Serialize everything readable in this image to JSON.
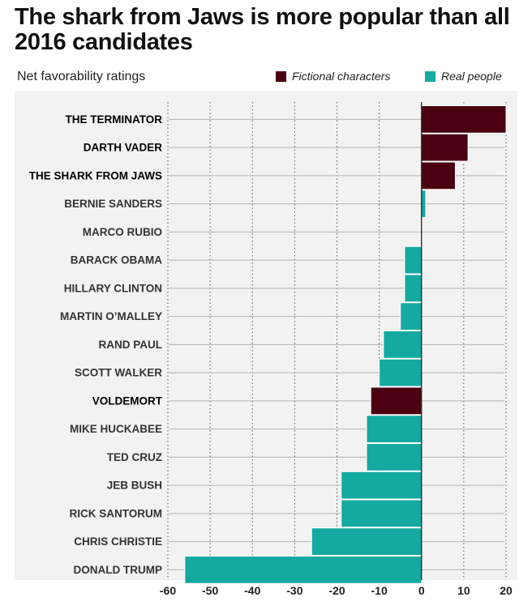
{
  "chart_data": {
    "type": "bar",
    "orientation": "horizontal",
    "title": "The shark from Jaws is more popular than all 2016 candidates",
    "subtitle": "Net favorability ratings",
    "legend": [
      {
        "name": "Fictional characters",
        "color": "#4a0010"
      },
      {
        "name": "Real people",
        "color": "#14a9a1"
      }
    ],
    "xlim": [
      -60,
      20
    ],
    "xticks": [
      -60,
      -50,
      -40,
      -30,
      -20,
      -10,
      0,
      10,
      20
    ],
    "categories": [
      "THE TERMINATOR",
      "DARTH VADER",
      "THE SHARK FROM JAWS",
      "BERNIE SANDERS",
      "MARCO RUBIO",
      "BARACK OBAMA",
      "HILLARY CLINTON",
      "MARTIN O’MALLEY",
      "RAND PAUL",
      "SCOTT WALKER",
      "VOLDEMORT",
      "MIKE HUCKABEE",
      "TED CRUZ",
      "JEB BUSH",
      "RICK SANTORUM",
      "CHRIS CHRISTIE",
      "DONALD TRUMP"
    ],
    "values": [
      20,
      11,
      8,
      1,
      0,
      -4,
      -4,
      -5,
      -9,
      -10,
      -12,
      -13,
      -13,
      -19,
      -19,
      -26,
      -56
    ],
    "groups": [
      "fictional",
      "fictional",
      "fictional",
      "real",
      "real",
      "real",
      "real",
      "real",
      "real",
      "real",
      "fictional",
      "real",
      "real",
      "real",
      "real",
      "real",
      "real"
    ]
  }
}
